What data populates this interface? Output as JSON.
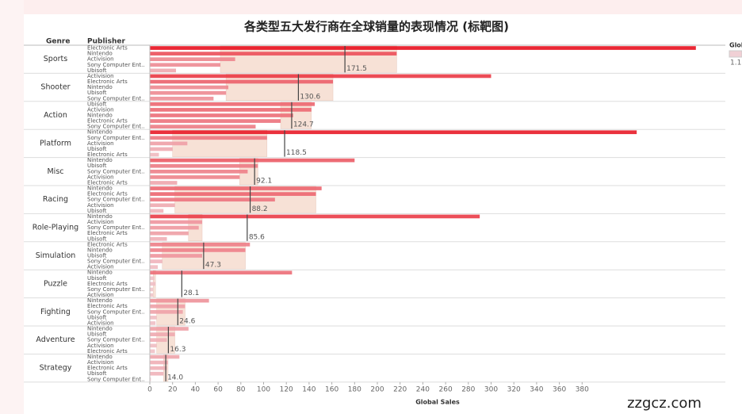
{
  "chart_data": {
    "type": "bullet",
    "title": "各类型五大发行商在全球销量的表现情况 (标靶图)",
    "column_headers": [
      "Genre",
      "Publisher"
    ],
    "xlabel": "Global Sales",
    "xlim": [
      0,
      490
    ],
    "xticks": [
      0,
      20,
      40,
      60,
      80,
      100,
      120,
      140,
      160,
      180,
      200,
      220,
      240,
      260,
      280,
      300,
      320,
      340,
      360,
      380
    ],
    "color_low": "#f0d0d5",
    "color_high": "#e8101e",
    "band_color": "#f7e1d6",
    "legend_title": "Glob",
    "legend_value": "1.1",
    "watermark": "zzgcz.com",
    "genres": [
      {
        "name": "Sports",
        "publishers": [
          "Electronic Arts",
          "Nintendo",
          "Activision",
          "Sony Computer Ent..",
          "Ubisoft"
        ],
        "values": [
          480,
          217,
          75,
          62,
          23
        ],
        "reference": 171.5
      },
      {
        "name": "Shooter",
        "publishers": [
          "Activision",
          "Electronic Arts",
          "Nintendo",
          "Ubisoft",
          "Sony Computer Ent.."
        ],
        "values": [
          300,
          161,
          69,
          67,
          56
        ],
        "reference": 130.6
      },
      {
        "name": "Action",
        "publishers": [
          "Ubisoft",
          "Activision",
          "Nintendo",
          "Electronic Arts",
          "Sony Computer Ent.."
        ],
        "values": [
          145,
          142,
          126,
          115,
          93
        ],
        "reference": 124.7
      },
      {
        "name": "Platform",
        "publishers": [
          "Nintendo",
          "Sony Computer Ent..",
          "Activision",
          "Ubisoft",
          "Electronic Arts"
        ],
        "values": [
          428,
          103,
          33,
          20,
          8
        ],
        "reference": 118.5
      },
      {
        "name": "Misc",
        "publishers": [
          "Nintendo",
          "Ubisoft",
          "Sony Computer Ent..",
          "Activision",
          "Electronic Arts"
        ],
        "values": [
          180,
          95,
          86,
          79,
          24
        ],
        "reference": 92.1
      },
      {
        "name": "Racing",
        "publishers": [
          "Nintendo",
          "Electronic Arts",
          "Sony Computer Ent..",
          "Activision",
          "Ubisoft"
        ],
        "values": [
          151,
          146,
          110,
          22,
          12
        ],
        "reference": 88.2
      },
      {
        "name": "Role-Playing",
        "publishers": [
          "Nintendo",
          "Activision",
          "Sony Computer Ent..",
          "Electronic Arts",
          "Ubisoft"
        ],
        "values": [
          290,
          46,
          43,
          34,
          15
        ],
        "reference": 85.6
      },
      {
        "name": "Simulation",
        "publishers": [
          "Electronic Arts",
          "Nintendo",
          "Ubisoft",
          "Sony Computer Ent..",
          "Activision"
        ],
        "values": [
          88,
          84,
          46,
          11,
          7
        ],
        "reference": 47.3
      },
      {
        "name": "Puzzle",
        "publishers": [
          "Nintendo",
          "Ubisoft",
          "Electronic Arts",
          "Sony Computer Ent..",
          "Activision"
        ],
        "values": [
          125,
          4,
          5,
          3,
          3
        ],
        "reference": 28.1
      },
      {
        "name": "Fighting",
        "publishers": [
          "Nintendo",
          "Electronic Arts",
          "Sony Computer Ent..",
          "Ubisoft",
          "Activision"
        ],
        "values": [
          52,
          31,
          29,
          6,
          5
        ],
        "reference": 24.6
      },
      {
        "name": "Adventure",
        "publishers": [
          "Nintendo",
          "Ubisoft",
          "Sony Computer Ent..",
          "Activision",
          "Electronic Arts"
        ],
        "values": [
          34,
          22,
          15,
          6,
          4.5
        ],
        "reference": 16.3
      },
      {
        "name": "Strategy",
        "publishers": [
          "Nintendo",
          "Activision",
          "Electronic Arts",
          "Ubisoft",
          "Sony Computer Ent.."
        ],
        "values": [
          26,
          16,
          15,
          12,
          1
        ],
        "reference": 14.0
      }
    ]
  }
}
